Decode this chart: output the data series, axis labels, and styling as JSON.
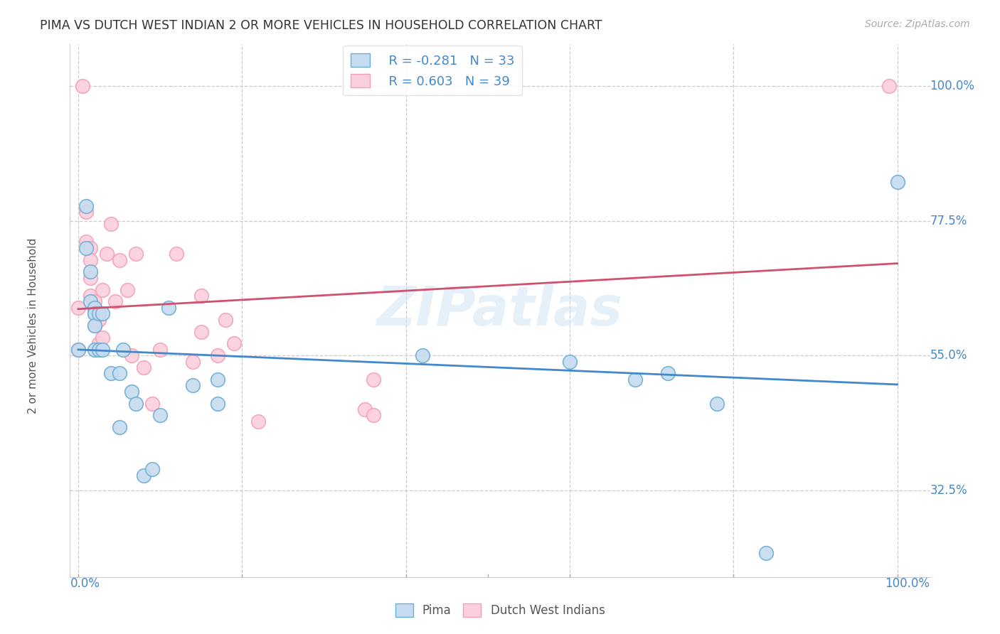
{
  "title": "PIMA VS DUTCH WEST INDIAN 2 OR MORE VEHICLES IN HOUSEHOLD CORRELATION CHART",
  "source": "Source: ZipAtlas.com",
  "ylabel": "2 or more Vehicles in Household",
  "yticks": [
    "32.5%",
    "55.0%",
    "77.5%",
    "100.0%"
  ],
  "ytick_vals": [
    0.325,
    0.55,
    0.775,
    1.0
  ],
  "legend_label1": "Pima",
  "legend_label2": "Dutch West Indians",
  "r_pima": -0.281,
  "n_pima": 33,
  "r_dutch": 0.603,
  "n_dutch": 39,
  "pima_color": "#6baed6",
  "pima_color_light": "#c6dcf0",
  "dutch_color": "#f4a0b8",
  "dutch_color_light": "#fbd0dc",
  "trend_pima_color": "#4488cc",
  "trend_dutch_color": "#d05070",
  "watermark": "ZIPatlas",
  "pima_points_x": [
    0.0,
    0.01,
    0.01,
    0.015,
    0.015,
    0.02,
    0.02,
    0.02,
    0.02,
    0.025,
    0.025,
    0.03,
    0.03,
    0.04,
    0.05,
    0.05,
    0.055,
    0.065,
    0.07,
    0.08,
    0.09,
    0.1,
    0.11,
    0.14,
    0.17,
    0.17,
    0.42,
    0.6,
    0.68,
    0.72,
    0.78,
    0.84,
    1.0
  ],
  "pima_points_y": [
    0.56,
    0.8,
    0.73,
    0.69,
    0.64,
    0.63,
    0.62,
    0.6,
    0.56,
    0.62,
    0.56,
    0.62,
    0.56,
    0.52,
    0.52,
    0.43,
    0.56,
    0.49,
    0.47,
    0.35,
    0.36,
    0.45,
    0.63,
    0.5,
    0.47,
    0.51,
    0.55,
    0.54,
    0.51,
    0.52,
    0.47,
    0.22,
    0.84
  ],
  "dutch_points_x": [
    0.0,
    0.0,
    0.005,
    0.01,
    0.01,
    0.015,
    0.015,
    0.015,
    0.015,
    0.02,
    0.02,
    0.02,
    0.025,
    0.025,
    0.025,
    0.03,
    0.03,
    0.035,
    0.04,
    0.045,
    0.05,
    0.06,
    0.065,
    0.07,
    0.08,
    0.09,
    0.1,
    0.12,
    0.14,
    0.15,
    0.15,
    0.17,
    0.18,
    0.19,
    0.22,
    0.35,
    0.36,
    0.36,
    0.99
  ],
  "dutch_points_y": [
    0.63,
    0.56,
    1.0,
    0.79,
    0.74,
    0.73,
    0.71,
    0.68,
    0.65,
    0.64,
    0.62,
    0.6,
    0.62,
    0.61,
    0.57,
    0.66,
    0.58,
    0.72,
    0.77,
    0.64,
    0.71,
    0.66,
    0.55,
    0.72,
    0.53,
    0.47,
    0.56,
    0.72,
    0.54,
    0.65,
    0.59,
    0.55,
    0.61,
    0.57,
    0.44,
    0.46,
    0.51,
    0.45,
    1.0
  ]
}
